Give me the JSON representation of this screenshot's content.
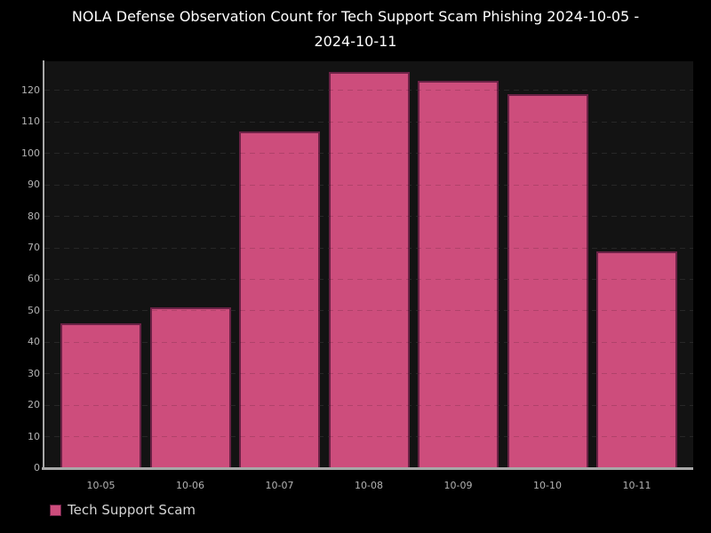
{
  "chart_data": {
    "type": "bar",
    "title": "NOLA Defense Observation Count for Tech Support Scam Phishing 2024-10-05 - 2024-10-11",
    "categories": [
      "10-05",
      "10-06",
      "10-07",
      "10-08",
      "10-09",
      "10-10",
      "10-11"
    ],
    "series": [
      {
        "name": "Tech Support Scam",
        "values": [
          46,
          51,
          107,
          126,
          123,
          119,
          69
        ]
      }
    ],
    "xlabel": "",
    "ylabel": "",
    "ylim": [
      0,
      129
    ],
    "yticks": [
      0,
      10,
      20,
      30,
      40,
      50,
      60,
      70,
      80,
      90,
      100,
      110,
      120
    ],
    "grid": "horizontal-dashed",
    "legend": {
      "position": "bottom-left",
      "entries": [
        "Tech Support Scam"
      ]
    },
    "colors": {
      "background": "#000000",
      "plot_background": "#131313",
      "bar_fill": "#cd4d7c",
      "bar_edge": "#6b2246",
      "grid_line": "#2d2d2d",
      "grid_line_over_bars": "rgba(0,0,0,0.14)",
      "axis_line": "#a8a8a8",
      "tick_label": "#b3b3b3",
      "title_text": "#ffffff",
      "legend_text": "#d4d4d4"
    }
  }
}
